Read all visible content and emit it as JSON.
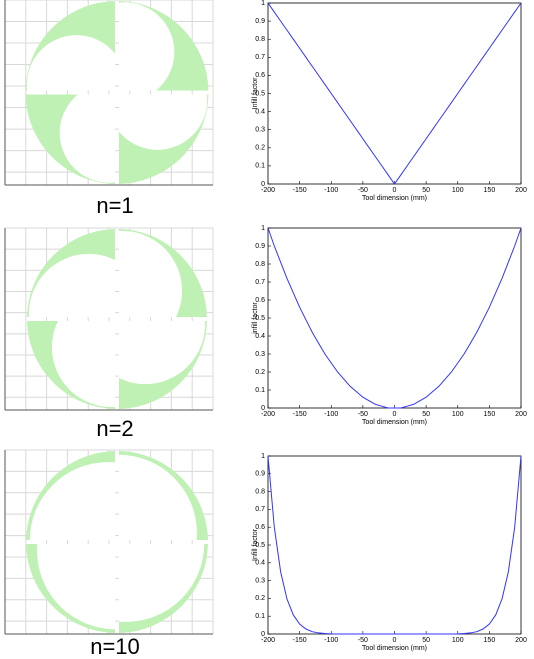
{
  "chart_data": [
    {
      "type": "line",
      "caption": "n=1",
      "x_label": "Tool dimension (mm)",
      "y_label": "Infill factor",
      "x": [
        -200,
        -190,
        -180,
        -170,
        -160,
        -150,
        -140,
        -130,
        -120,
        -110,
        -100,
        -90,
        -80,
        -70,
        -60,
        -50,
        -40,
        -30,
        -20,
        -10,
        0,
        10,
        20,
        30,
        40,
        50,
        60,
        70,
        80,
        90,
        100,
        110,
        120,
        130,
        140,
        150,
        160,
        170,
        180,
        190,
        200
      ],
      "series": [
        {
          "color": "#3333ff",
          "values": [
            1,
            0.95,
            0.9,
            0.85,
            0.8,
            0.75,
            0.7,
            0.65,
            0.6,
            0.55,
            0.5,
            0.45,
            0.4,
            0.35,
            0.3,
            0.25,
            0.2,
            0.15,
            0.1,
            0.05,
            0,
            0.05,
            0.1,
            0.15,
            0.2,
            0.25,
            0.3,
            0.35,
            0.4,
            0.45,
            0.5,
            0.55,
            0.6,
            0.65,
            0.7,
            0.75,
            0.8,
            0.85,
            0.9,
            0.95,
            1
          ]
        }
      ],
      "xlim": [
        -200,
        200
      ],
      "ylim": [
        0,
        1
      ],
      "xticks": [
        -200,
        -150,
        -100,
        -50,
        0,
        50,
        100,
        150,
        200
      ],
      "yticks": [
        0,
        0.1,
        0.2,
        0.3,
        0.4,
        0.5,
        0.6,
        0.7,
        0.8,
        0.9,
        1
      ]
    },
    {
      "type": "line",
      "caption": "n=2",
      "x_label": "Tool dimension (mm)",
      "y_label": "infill factor",
      "x": [
        -200,
        -190,
        -180,
        -170,
        -160,
        -150,
        -140,
        -130,
        -120,
        -110,
        -100,
        -90,
        -80,
        -70,
        -60,
        -50,
        -40,
        -30,
        -20,
        -10,
        0,
        10,
        20,
        30,
        40,
        50,
        60,
        70,
        80,
        90,
        100,
        110,
        120,
        130,
        140,
        150,
        160,
        170,
        180,
        190,
        200
      ],
      "series": [
        {
          "color": "#3333ff",
          "values": [
            1,
            0.9,
            0.81,
            0.72,
            0.64,
            0.56,
            0.49,
            0.42,
            0.36,
            0.3,
            0.25,
            0.2,
            0.16,
            0.12,
            0.09,
            0.06,
            0.04,
            0.02,
            0.01,
            0,
            0,
            0,
            0.01,
            0.02,
            0.04,
            0.06,
            0.09,
            0.12,
            0.16,
            0.2,
            0.25,
            0.3,
            0.36,
            0.42,
            0.49,
            0.56,
            0.64,
            0.72,
            0.81,
            0.9,
            1
          ]
        }
      ],
      "xlim": [
        -200,
        200
      ],
      "ylim": [
        0,
        1
      ],
      "xticks": [
        -200,
        -150,
        -100,
        -50,
        0,
        50,
        100,
        150,
        200
      ],
      "yticks": [
        0,
        0.1,
        0.2,
        0.3,
        0.4,
        0.5,
        0.6,
        0.7,
        0.8,
        0.9,
        1
      ]
    },
    {
      "type": "line",
      "caption": "n=10",
      "x_label": "Tool dimension (mm)",
      "y_label": "Infill factor",
      "x": [
        -200,
        -190,
        -180,
        -170,
        -160,
        -150,
        -140,
        -130,
        -120,
        -110,
        -100,
        -90,
        -80,
        -70,
        -60,
        -50,
        -40,
        -30,
        -20,
        -10,
        0,
        10,
        20,
        30,
        40,
        50,
        60,
        70,
        80,
        90,
        100,
        110,
        120,
        130,
        140,
        150,
        160,
        170,
        180,
        190,
        200
      ],
      "series": [
        {
          "color": "#3333ff",
          "values": [
            1,
            0.599,
            0.349,
            0.197,
            0.107,
            0.056,
            0.028,
            0.013,
            0.006,
            0.003,
            0.001,
            0,
            0,
            0,
            0,
            0,
            0,
            0,
            0,
            0,
            0,
            0,
            0,
            0,
            0,
            0,
            0,
            0,
            0,
            0,
            0.001,
            0.003,
            0.006,
            0.013,
            0.028,
            0.056,
            0.107,
            0.197,
            0.349,
            0.599,
            1
          ]
        }
      ],
      "xlim": [
        -200,
        200
      ],
      "ylim": [
        0,
        1
      ],
      "xticks": [
        -200,
        -150,
        -100,
        -50,
        0,
        50,
        100,
        150,
        200
      ],
      "yticks": [
        0,
        0.1,
        0.2,
        0.3,
        0.4,
        0.5,
        0.6,
        0.7,
        0.8,
        0.9,
        1
      ]
    }
  ]
}
